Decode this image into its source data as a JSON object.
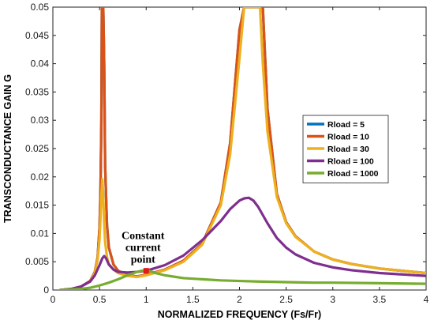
{
  "chart_data": {
    "type": "line",
    "xlabel": "NORMALIZED FREQUENCY (Fs/Fr)",
    "ylabel": "TRANSCONDUCTANCE GAIN G",
    "xlim": [
      0,
      4
    ],
    "ylim": [
      0,
      0.05
    ],
    "x_ticks": [
      0,
      0.5,
      1,
      1.5,
      2,
      2.5,
      3,
      3.5,
      4
    ],
    "x_tick_labels": [
      "0",
      "0.5",
      "1",
      "1.5",
      "2",
      "2.5",
      "3",
      "3.5",
      "4"
    ],
    "y_ticks": [
      0,
      0.005,
      0.01,
      0.015,
      0.02,
      0.025,
      0.03,
      0.035,
      0.04,
      0.045,
      0.05
    ],
    "y_tick_labels": [
      "0",
      "0.005",
      "0.01",
      "0.015",
      "0.02",
      "0.025",
      "0.03",
      "0.035",
      "0.04",
      "0.045",
      "0.05"
    ],
    "grid": false,
    "legend_position": "right",
    "series": [
      {
        "name": "Rload = 5",
        "color": "#0072BD",
        "x": [
          0.08,
          0.2,
          0.3,
          0.4,
          0.45,
          0.48,
          0.5,
          0.51,
          0.52,
          0.525,
          0.53,
          0.535,
          0.54,
          0.55,
          0.56,
          0.58,
          0.6,
          0.65,
          0.7,
          0.8,
          0.9,
          1.0,
          1.2,
          1.4,
          1.6,
          1.8,
          1.9,
          2.0,
          2.05,
          2.08,
          2.1,
          2.12,
          2.15,
          2.18,
          2.2,
          2.22,
          2.25,
          2.3,
          2.4,
          2.5,
          2.6,
          2.8,
          3.0,
          3.2,
          3.5,
          3.8,
          4.0
        ],
        "y": [
          0.0,
          0.0002,
          0.0006,
          0.0016,
          0.0032,
          0.0058,
          0.011,
          0.017,
          0.03,
          0.05,
          0.05,
          0.05,
          0.05,
          0.04,
          0.022,
          0.0115,
          0.0075,
          0.0045,
          0.0034,
          0.0026,
          0.0024,
          0.0027,
          0.0036,
          0.0052,
          0.0082,
          0.0155,
          0.026,
          0.046,
          0.05,
          0.05,
          0.05,
          0.05,
          0.05,
          0.05,
          0.05,
          0.05,
          0.05,
          0.032,
          0.017,
          0.012,
          0.0095,
          0.0068,
          0.0054,
          0.0046,
          0.0038,
          0.0033,
          0.003
        ]
      },
      {
        "name": "Rload = 10",
        "color": "#D95319",
        "x": [
          0.08,
          0.2,
          0.3,
          0.4,
          0.45,
          0.48,
          0.5,
          0.51,
          0.52,
          0.525,
          0.53,
          0.535,
          0.54,
          0.55,
          0.56,
          0.58,
          0.6,
          0.65,
          0.7,
          0.8,
          0.9,
          1.0,
          1.2,
          1.4,
          1.6,
          1.8,
          1.9,
          2.0,
          2.05,
          2.08,
          2.1,
          2.12,
          2.15,
          2.18,
          2.2,
          2.22,
          2.25,
          2.3,
          2.4,
          2.5,
          2.6,
          2.8,
          3.0,
          3.2,
          3.5,
          3.8,
          4.0
        ],
        "y": [
          0.0,
          0.0002,
          0.0006,
          0.0016,
          0.0032,
          0.0058,
          0.011,
          0.017,
          0.03,
          0.05,
          0.05,
          0.05,
          0.05,
          0.04,
          0.022,
          0.0115,
          0.0075,
          0.0045,
          0.0034,
          0.0026,
          0.0024,
          0.0027,
          0.0036,
          0.0052,
          0.0082,
          0.0155,
          0.026,
          0.046,
          0.05,
          0.05,
          0.05,
          0.05,
          0.05,
          0.05,
          0.05,
          0.05,
          0.05,
          0.032,
          0.017,
          0.012,
          0.0095,
          0.0068,
          0.0054,
          0.0046,
          0.0038,
          0.0033,
          0.003
        ]
      },
      {
        "name": "Rload = 30",
        "color": "#EDB120",
        "x": [
          0.08,
          0.2,
          0.3,
          0.4,
          0.45,
          0.48,
          0.5,
          0.51,
          0.52,
          0.53,
          0.54,
          0.55,
          0.56,
          0.58,
          0.6,
          0.65,
          0.7,
          0.8,
          0.9,
          1.0,
          1.2,
          1.4,
          1.6,
          1.8,
          1.9,
          2.0,
          2.05,
          2.08,
          2.1,
          2.12,
          2.15,
          2.18,
          2.2,
          2.22,
          2.25,
          2.3,
          2.4,
          2.5,
          2.6,
          2.8,
          3.0,
          3.2,
          3.5,
          3.8,
          4.0
        ],
        "y": [
          0.0,
          0.0002,
          0.0006,
          0.0015,
          0.003,
          0.0054,
          0.009,
          0.0125,
          0.0168,
          0.0196,
          0.0165,
          0.0118,
          0.0085,
          0.0058,
          0.0046,
          0.0036,
          0.003,
          0.0025,
          0.0023,
          0.0026,
          0.0035,
          0.005,
          0.008,
          0.015,
          0.024,
          0.041,
          0.05,
          0.05,
          0.05,
          0.05,
          0.05,
          0.05,
          0.05,
          0.05,
          0.04,
          0.028,
          0.0165,
          0.0118,
          0.0094,
          0.0068,
          0.0054,
          0.0046,
          0.0038,
          0.0033,
          0.003
        ]
      },
      {
        "name": "Rload = 100",
        "color": "#7E2F8E",
        "x": [
          0.08,
          0.2,
          0.3,
          0.4,
          0.45,
          0.5,
          0.53,
          0.55,
          0.57,
          0.6,
          0.65,
          0.7,
          0.8,
          0.9,
          1.0,
          1.2,
          1.4,
          1.6,
          1.8,
          1.9,
          2.0,
          2.05,
          2.1,
          2.15,
          2.2,
          2.3,
          2.4,
          2.5,
          2.6,
          2.8,
          3.0,
          3.2,
          3.5,
          3.8,
          4.0
        ],
        "y": [
          0.0,
          0.0002,
          0.0006,
          0.0015,
          0.0026,
          0.0044,
          0.0056,
          0.006,
          0.0056,
          0.0045,
          0.0036,
          0.0032,
          0.0031,
          0.0032,
          0.0034,
          0.0044,
          0.0061,
          0.0088,
          0.0122,
          0.0143,
          0.0158,
          0.0162,
          0.0163,
          0.0158,
          0.0147,
          0.0118,
          0.0092,
          0.0075,
          0.0063,
          0.0048,
          0.004,
          0.0035,
          0.003,
          0.0027,
          0.0025
        ]
      },
      {
        "name": "Rload = 1000",
        "color": "#77AC30",
        "x": [
          0.08,
          0.2,
          0.3,
          0.4,
          0.5,
          0.6,
          0.7,
          0.8,
          0.9,
          0.95,
          1.0,
          1.05,
          1.1,
          1.2,
          1.4,
          1.6,
          1.8,
          2.0,
          2.2,
          2.5,
          2.8,
          3.0,
          3.5,
          4.0
        ],
        "y": [
          0.0,
          0.0001,
          0.0002,
          0.0004,
          0.0008,
          0.0013,
          0.0019,
          0.0026,
          0.0032,
          0.0034,
          0.0034,
          0.0033,
          0.003,
          0.0026,
          0.0021,
          0.0019,
          0.0017,
          0.0016,
          0.0015,
          0.0014,
          0.0013,
          0.0013,
          0.0012,
          0.0011
        ]
      }
    ],
    "annotations": [
      {
        "text_lines": [
          "Constant",
          "current",
          "point"
        ],
        "x": 1.0,
        "y": 0.0034,
        "marker_color": "#E31A1C"
      }
    ]
  }
}
